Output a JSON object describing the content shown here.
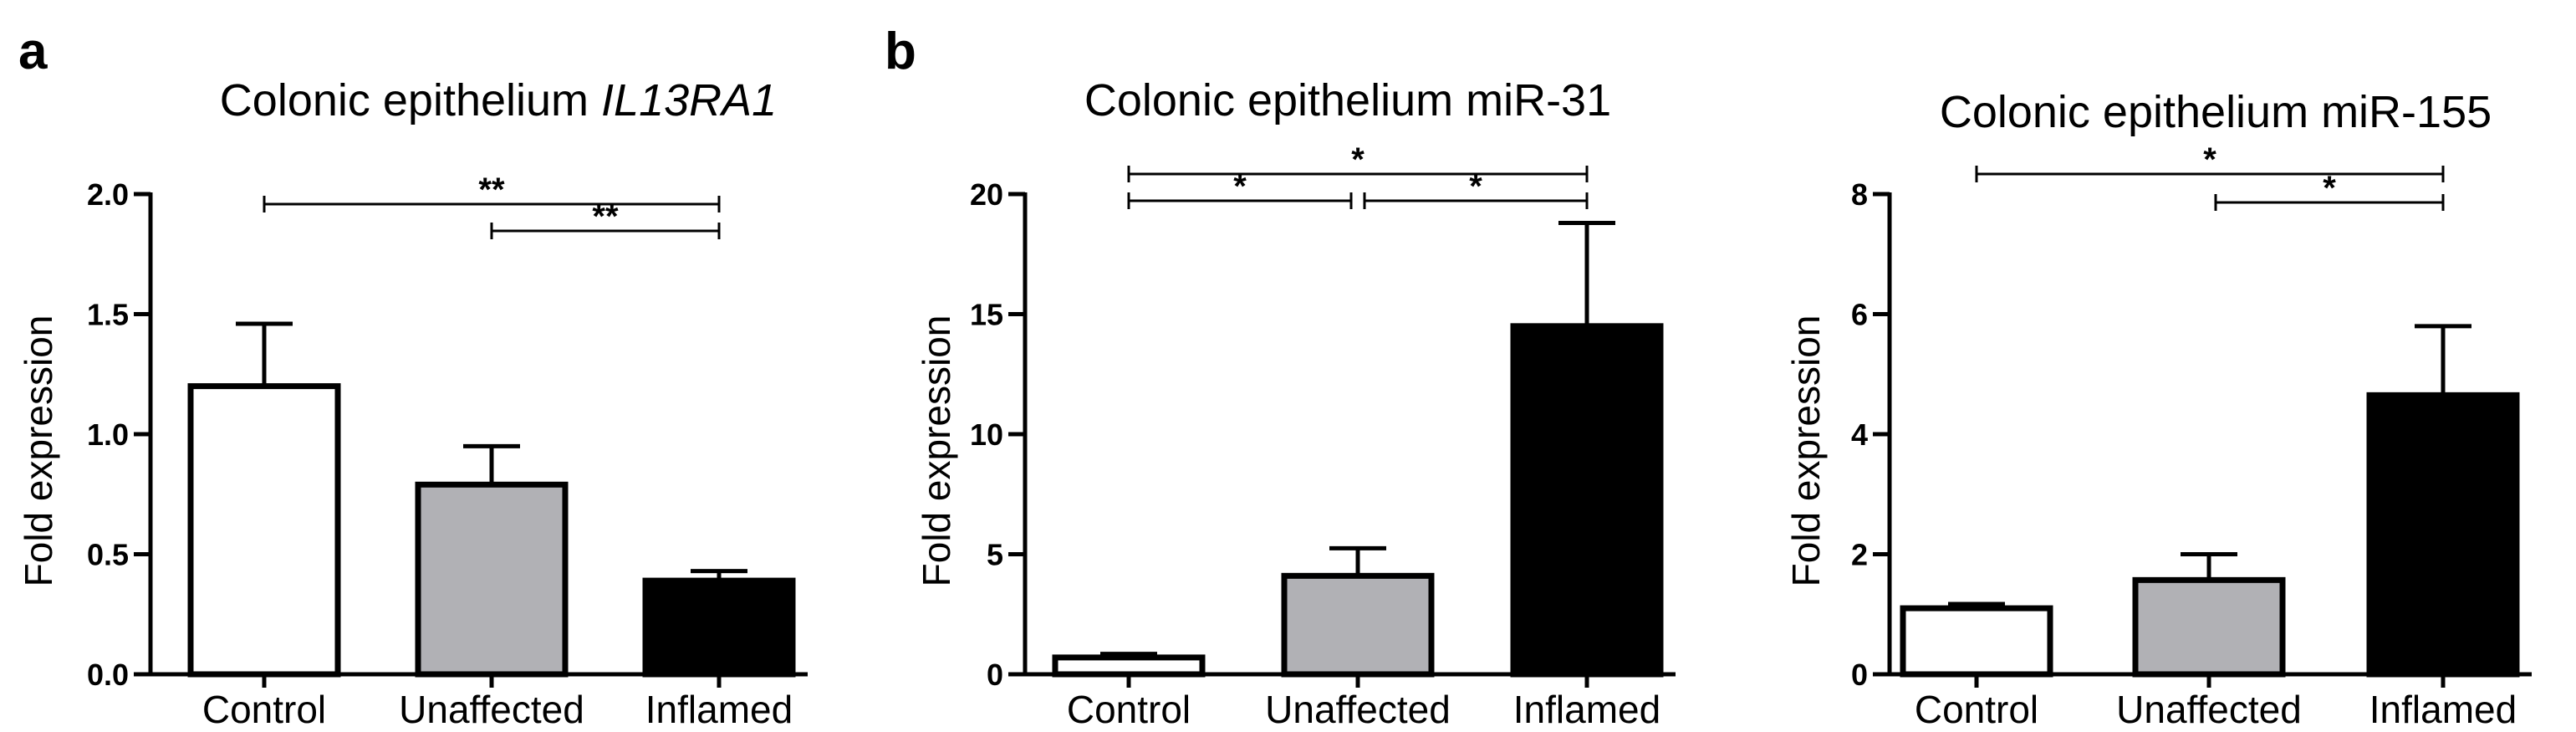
{
  "panels": [
    {
      "label": "a"
    },
    {
      "label": "b"
    }
  ],
  "chart_data": [
    {
      "type": "bar",
      "title": "Colonic epithelium",
      "title_gene": "IL13RA1",
      "xlabel": "",
      "ylabel": "Fold expression",
      "categories": [
        "Control",
        "Unaffected",
        "Inflamed"
      ],
      "values": [
        1.2,
        0.79,
        0.39
      ],
      "error_upper": [
        1.46,
        0.95,
        0.43
      ],
      "bar_colors": [
        "#ffffff",
        "#b1b1b5",
        "#000000"
      ],
      "ylim": [
        0,
        2.0
      ],
      "yticks": [
        "0.0",
        "0.5",
        "1.0",
        "1.5",
        "2.0"
      ],
      "grid": false,
      "significance": [
        {
          "from": 0,
          "to": 2,
          "label": "**"
        },
        {
          "from": 1,
          "to": 2,
          "label": "**"
        }
      ]
    },
    {
      "type": "bar",
      "title": "Colonic epithelium miR-31",
      "xlabel": "",
      "ylabel": "Fold expression",
      "categories": [
        "Control",
        "Unaffected",
        "Inflamed"
      ],
      "values": [
        0.7,
        4.1,
        14.5
      ],
      "error_upper": [
        0.85,
        5.25,
        18.8
      ],
      "bar_colors": [
        "#ffffff",
        "#b1b1b5",
        "#000000"
      ],
      "ylim": [
        0,
        20
      ],
      "yticks": [
        "0",
        "5",
        "10",
        "15",
        "20"
      ],
      "grid": false,
      "significance": [
        {
          "from": 0,
          "to": 2,
          "label": "*"
        },
        {
          "from": 0,
          "to": 1,
          "label": "*"
        },
        {
          "from": 1,
          "to": 2,
          "label": "*"
        }
      ]
    },
    {
      "type": "bar",
      "title": "Colonic epithelium miR-155",
      "xlabel": "",
      "ylabel": "Fold expression",
      "categories": [
        "Control",
        "Unaffected",
        "Inflamed"
      ],
      "values": [
        1.1,
        1.57,
        4.65
      ],
      "error_upper": [
        1.17,
        2.0,
        5.8
      ],
      "bar_colors": [
        "#ffffff",
        "#b1b1b5",
        "#000000"
      ],
      "ylim": [
        0,
        8
      ],
      "yticks": [
        "0",
        "2",
        "4",
        "6",
        "8"
      ],
      "grid": false,
      "significance": [
        {
          "from": 0,
          "to": 2,
          "label": "*"
        },
        {
          "from": 1,
          "to": 2,
          "label": "*"
        }
      ]
    }
  ]
}
